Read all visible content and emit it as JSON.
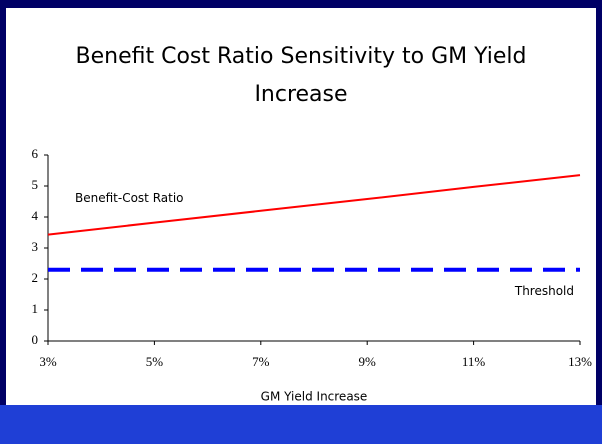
{
  "chart_data": {
    "type": "line",
    "title": "Benefit Cost Ratio Sensitivity to GM Yield Increase",
    "x_label": "GM Yield Increase",
    "x": [
      3,
      5,
      7,
      9,
      11,
      13
    ],
    "series": [
      {
        "name": "Benefit-Cost Ratio",
        "color": "#ff0000",
        "dash": false,
        "values": [
          3.43,
          3.82,
          4.2,
          4.58,
          4.97,
          5.35
        ]
      },
      {
        "name": "Threshold",
        "color": "#0000ff",
        "dash": true,
        "values": [
          2.3,
          2.3,
          2.3,
          2.3,
          2.3,
          2.3
        ]
      }
    ],
    "xlim": [
      3,
      13
    ],
    "xticks": [
      {
        "value": 3,
        "label": "3%"
      },
      {
        "value": 5,
        "label": "5%"
      },
      {
        "value": 7,
        "label": "7%"
      },
      {
        "value": 9,
        "label": "9%"
      },
      {
        "value": 11,
        "label": "11%"
      },
      {
        "value": 13,
        "label": "13%"
      }
    ],
    "ylim": [
      0,
      6
    ],
    "yticks": [
      0,
      1,
      2,
      3,
      4,
      5,
      6
    ],
    "grid": false
  }
}
